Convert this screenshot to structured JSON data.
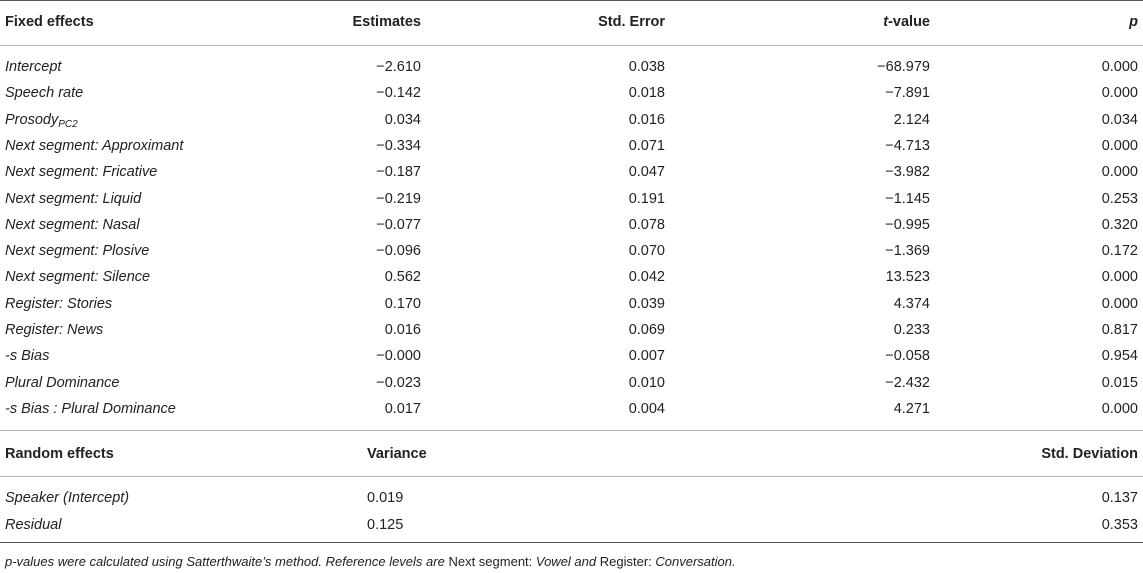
{
  "fixed_header": {
    "col0": "Fixed effects",
    "col1": "Estimates",
    "col2": "Std. Error",
    "col3_italic": "t",
    "col3_rest": "-value",
    "col4": "p"
  },
  "fixed_rows": [
    {
      "name": "Intercept",
      "sub": "",
      "est": "−2.610",
      "se": "0.038",
      "t": "−68.979",
      "p": "0.000"
    },
    {
      "name": "Speech rate",
      "sub": "",
      "est": "−0.142",
      "se": "0.018",
      "t": "−7.891",
      "p": "0.000"
    },
    {
      "name": "Prosody",
      "sub": "PC2",
      "est": "0.034",
      "se": "0.016",
      "t": "2.124",
      "p": "0.034"
    },
    {
      "name": "Next segment: Approximant",
      "sub": "",
      "est": "−0.334",
      "se": "0.071",
      "t": "−4.713",
      "p": "0.000"
    },
    {
      "name": "Next segment: Fricative",
      "sub": "",
      "est": "−0.187",
      "se": "0.047",
      "t": "−3.982",
      "p": "0.000"
    },
    {
      "name": "Next segment: Liquid",
      "sub": "",
      "est": "−0.219",
      "se": "0.191",
      "t": "−1.145",
      "p": "0.253"
    },
    {
      "name": "Next segment: Nasal",
      "sub": "",
      "est": "−0.077",
      "se": "0.078",
      "t": "−0.995",
      "p": "0.320"
    },
    {
      "name": "Next segment: Plosive",
      "sub": "",
      "est": "−0.096",
      "se": "0.070",
      "t": "−1.369",
      "p": "0.172"
    },
    {
      "name": "Next segment: Silence",
      "sub": "",
      "est": "0.562",
      "se": "0.042",
      "t": "13.523",
      "p": "0.000"
    },
    {
      "name": "Register: Stories",
      "sub": "",
      "est": "0.170",
      "se": "0.039",
      "t": "4.374",
      "p": "0.000"
    },
    {
      "name": "Register: News",
      "sub": "",
      "est": "0.016",
      "se": "0.069",
      "t": "0.233",
      "p": "0.817"
    },
    {
      "name": "-s Bias",
      "sub": "",
      "est": "−0.000",
      "se": "0.007",
      "t": "−0.058",
      "p": "0.954"
    },
    {
      "name": "Plural Dominance",
      "sub": "",
      "est": "−0.023",
      "se": "0.010",
      "t": "−2.432",
      "p": "0.015"
    },
    {
      "name": "-s Bias : Plural Dominance",
      "sub": "",
      "est": "0.017",
      "se": "0.004",
      "t": "4.271",
      "p": "0.000"
    }
  ],
  "random_header": {
    "col0": "Random effects",
    "col1": "Variance",
    "col4": "Std. Deviation"
  },
  "random_rows": [
    {
      "name": "Speaker (Intercept)",
      "var": "0.019",
      "sd": "0.137"
    },
    {
      "name": "Residual",
      "var": "0.125",
      "sd": "0.353"
    }
  ],
  "note": {
    "part1": "p-values were calculated using Satterthwaite’s method. Reference levels are ",
    "part2": "Next segment: ",
    "part3": "Vowel and ",
    "part4": "Register: ",
    "part5": "Conversation."
  }
}
